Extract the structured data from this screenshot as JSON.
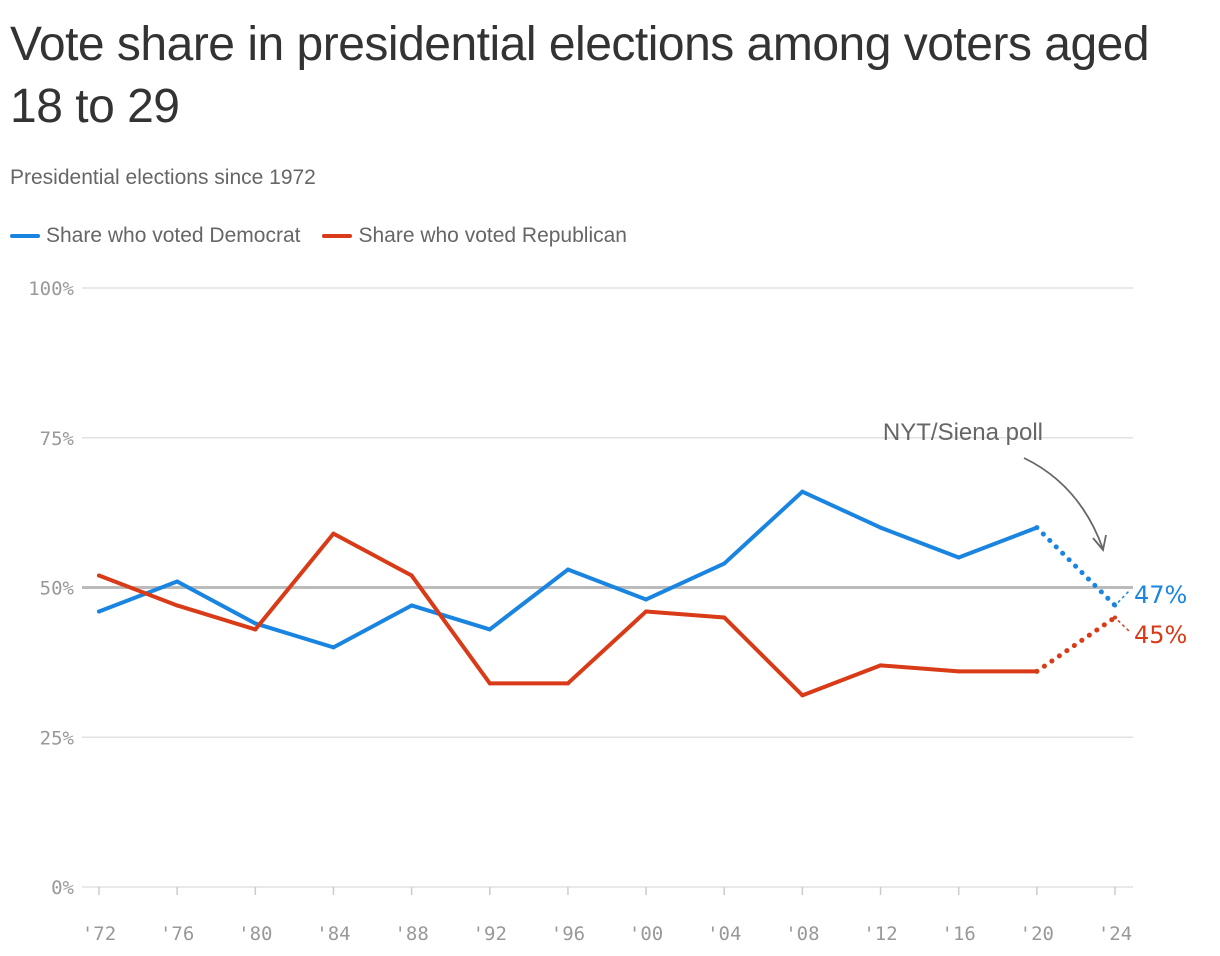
{
  "chart_data": {
    "type": "line",
    "title": "Vote share in presidential elections among voters aged 18 to 29",
    "subtitle": "Presidential elections since 1972",
    "categories": [
      "'72",
      "'76",
      "'80",
      "'84",
      "'88",
      "'92",
      "'96",
      "'00",
      "'04",
      "'08",
      "'12",
      "'16",
      "'20",
      "'24"
    ],
    "yticks": [
      "0%",
      "25%",
      "50%",
      "75%",
      "100%"
    ],
    "ylim": [
      0,
      100
    ],
    "grid": true,
    "reference_line": 50,
    "series": [
      {
        "name": "Share who voted Democrat",
        "color": "#1a85e0",
        "values": [
          46,
          51,
          44,
          40,
          47,
          43,
          53,
          48,
          54,
          66,
          60,
          55,
          60,
          47
        ],
        "end_label": "47%"
      },
      {
        "name": "Share who voted Republican",
        "color": "#d93a17",
        "values": [
          52,
          47,
          43,
          59,
          52,
          34,
          34,
          46,
          45,
          32,
          37,
          36,
          36,
          45
        ],
        "end_label": "45%"
      }
    ],
    "dotted_segment": "'20 to '24",
    "annotation": "NYT/Siena poll",
    "legend_position": "top-left"
  }
}
